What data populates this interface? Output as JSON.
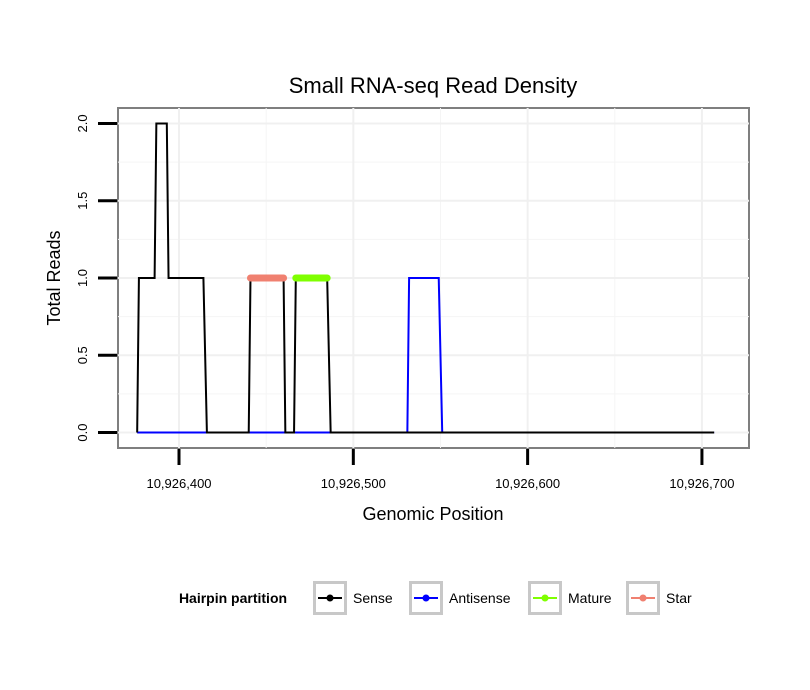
{
  "chart_data": {
    "type": "line",
    "title": "Small RNA-seq Read Density",
    "xlabel": "Genomic Position",
    "ylabel": "Total Reads",
    "xlim": [
      10926365,
      10926727
    ],
    "ylim": [
      -0.1,
      2.1
    ],
    "x_ticks": [
      {
        "value": 10926400,
        "label": "10,926,400"
      },
      {
        "value": 10926500,
        "label": "10,926,500"
      },
      {
        "value": 10926600,
        "label": "10,926,600"
      },
      {
        "value": 10926700,
        "label": "10,926,700"
      }
    ],
    "y_ticks": [
      {
        "value": 0.0,
        "label": "0.0"
      },
      {
        "value": 0.5,
        "label": "0.5"
      },
      {
        "value": 1.0,
        "label": "1.0"
      },
      {
        "value": 1.5,
        "label": "1.5"
      },
      {
        "value": 2.0,
        "label": "2.0"
      }
    ],
    "grid": true,
    "legend": {
      "title": "Hairpin partition",
      "position": "bottom",
      "entries": [
        {
          "name": "Sense",
          "color": "#000000"
        },
        {
          "name": "Antisense",
          "color": "#0000ff"
        },
        {
          "name": "Mature",
          "color": "#7fff00"
        },
        {
          "name": "Star",
          "color": "#f08070"
        }
      ]
    },
    "series": [
      {
        "name": "Antisense",
        "color": "#0000ff",
        "style": "line",
        "points": [
          [
            10926376,
            0
          ],
          [
            10926531,
            0
          ],
          [
            10926532,
            1
          ],
          [
            10926549,
            1
          ],
          [
            10926551,
            0
          ],
          [
            10926707,
            0
          ]
        ]
      },
      {
        "name": "Sense",
        "color": "#000000",
        "style": "line",
        "points": [
          [
            10926376,
            0
          ],
          [
            10926377,
            1
          ],
          [
            10926386,
            1
          ],
          [
            10926387,
            2
          ],
          [
            10926393,
            2
          ],
          [
            10926394,
            1
          ],
          [
            10926414,
            1
          ],
          [
            10926416,
            0
          ],
          [
            10926440,
            0
          ],
          [
            10926441,
            1
          ],
          [
            10926460,
            1
          ],
          [
            10926461,
            0
          ],
          [
            10926466,
            0
          ],
          [
            10926467,
            1
          ],
          [
            10926485,
            1
          ],
          [
            10926487,
            0
          ],
          [
            10926707,
            0
          ]
        ]
      },
      {
        "name": "Star",
        "color": "#f08070",
        "style": "thick",
        "points": [
          [
            10926441,
            1
          ],
          [
            10926460,
            1
          ]
        ]
      },
      {
        "name": "Mature",
        "color": "#7fff00",
        "style": "thick",
        "points": [
          [
            10926467,
            1
          ],
          [
            10926485,
            1
          ]
        ]
      }
    ]
  }
}
